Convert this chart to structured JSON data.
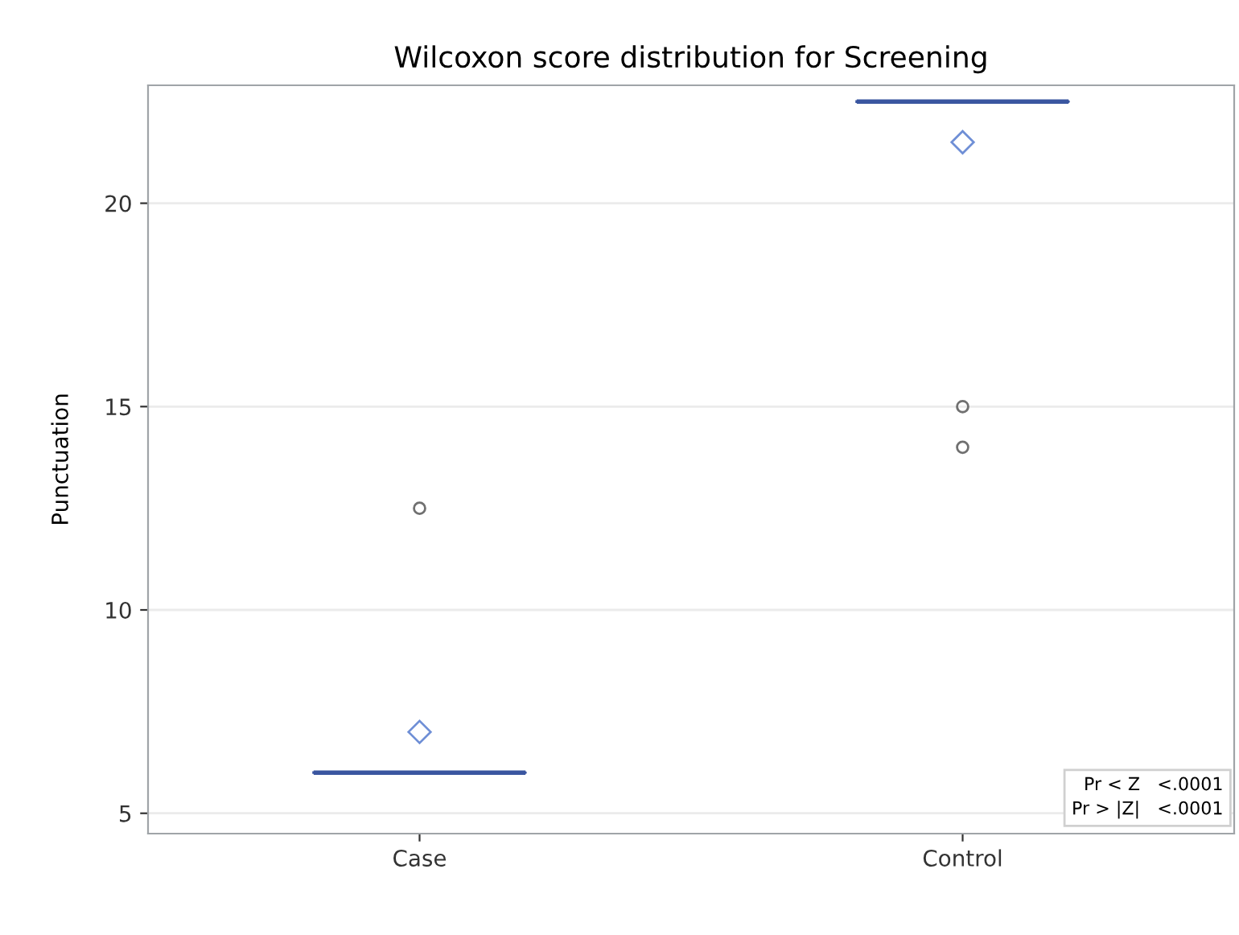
{
  "chart_data": {
    "type": "box",
    "title": "Wilcoxon score distribution for Screening",
    "ylabel": "Punctuation",
    "categories": [
      "Case",
      "Control"
    ],
    "boxes": [
      {
        "low": 6,
        "q1": 6,
        "median": 6,
        "q3": 6,
        "high": 6,
        "mean": 7,
        "outliers": [
          12.5
        ]
      },
      {
        "low": 22.5,
        "q1": 22.5,
        "median": 22.5,
        "q3": 22.5,
        "high": 22.5,
        "mean": 21.5,
        "outliers": [
          15,
          14
        ]
      }
    ],
    "color": "#3a56a0",
    "ylim": [
      4.5,
      22.9
    ],
    "yticks": [
      5,
      10,
      15,
      20
    ],
    "grid": "y",
    "legend": false,
    "annotations": [
      "Pr < Z   <.0001",
      "Pr > |Z|   <.0001"
    ]
  }
}
